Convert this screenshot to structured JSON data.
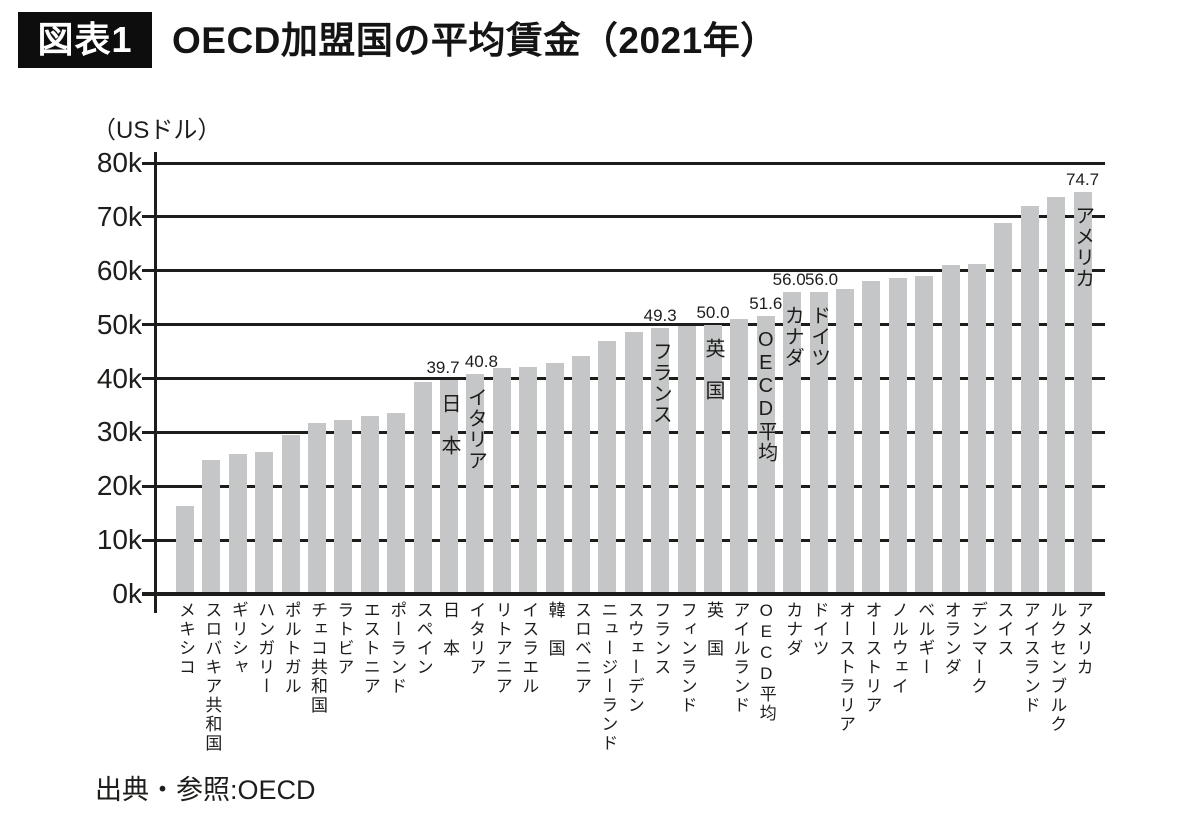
{
  "figure_label": "図表1",
  "title": "OECD加盟国の平均賃金（2021年）",
  "source": "出典・参照:OECD",
  "chart_data": {
    "type": "bar",
    "title": "OECD加盟国の平均賃金（2021年）",
    "unit_label": "（USドル）",
    "xlabel": "",
    "ylabel": "USドル",
    "ylim": [
      0,
      80
    ],
    "ytick_step": 10,
    "ytick_labels": [
      "0k",
      "10k",
      "20k",
      "30k",
      "40k",
      "50k",
      "60k",
      "70k",
      "80k"
    ],
    "grid": true,
    "bar_color": "#c5c6c7",
    "line_color": "#1d1d1b",
    "values_unit": "thousand USD",
    "categories": [
      {
        "label": "メキシコ",
        "value": 16.4
      },
      {
        "label": "スロバキア共和国",
        "value": 24.8
      },
      {
        "label": "ギリシャ",
        "value": 26.0
      },
      {
        "label": "ハンガリー",
        "value": 26.3
      },
      {
        "label": "ポルトガル",
        "value": 29.5
      },
      {
        "label": "チェコ共和国",
        "value": 31.7
      },
      {
        "label": "ラトビア",
        "value": 32.3
      },
      {
        "label": "エストニア",
        "value": 33.1
      },
      {
        "label": "ポーランド",
        "value": 33.6
      },
      {
        "label": "スペイン",
        "value": 39.3
      },
      {
        "label": "日　本",
        "value": 39.7,
        "value_label": "39.7",
        "annotation": "日　本",
        "dx": -6
      },
      {
        "label": "イタリア",
        "value": 40.8,
        "value_label": "40.8",
        "annotation": "イタリア",
        "dx": 6
      },
      {
        "label": "リトアニア",
        "value": 41.9
      },
      {
        "label": "イスラエル",
        "value": 42.1
      },
      {
        "label": "韓　国",
        "value": 42.9
      },
      {
        "label": "スロベニア",
        "value": 44.1
      },
      {
        "label": "ニュージーランド",
        "value": 46.9
      },
      {
        "label": "スウェーデン",
        "value": 48.7
      },
      {
        "label": "フランス",
        "value": 49.3,
        "value_label": "49.3",
        "annotation": "フランス",
        "dx": 0
      },
      {
        "label": "フィンランド",
        "value": 49.7
      },
      {
        "label": "英　国",
        "value": 50.0,
        "value_label": "50.0",
        "annotation": "英　国",
        "dx": 0
      },
      {
        "label": "アイルランド",
        "value": 51.0
      },
      {
        "label": "OECD平均",
        "value": 51.6,
        "value_label": "51.6",
        "annotation": "OECD平均",
        "dx": 0
      },
      {
        "label": "カナダ",
        "value": 56.0,
        "value_label": "56.0",
        "annotation": "カナダ",
        "dx": -3
      },
      {
        "label": "ドイツ",
        "value": 56.0,
        "value_label": "56.0",
        "annotation": "ドイツ",
        "dx": 3
      },
      {
        "label": "オーストラリア",
        "value": 56.6
      },
      {
        "label": "オーストリア",
        "value": 58.1
      },
      {
        "label": "ノルウェイ",
        "value": 58.6
      },
      {
        "label": "ベルギー",
        "value": 59.1
      },
      {
        "label": "オランダ",
        "value": 61.1
      },
      {
        "label": "デンマーク",
        "value": 61.3
      },
      {
        "label": "スイス",
        "value": 68.9
      },
      {
        "label": "アイスランド",
        "value": 72.0
      },
      {
        "label": "ルクセンブルク",
        "value": 73.7
      },
      {
        "label": "アメリカ",
        "value": 74.7,
        "value_label": "74.7",
        "annotation": "アメリカ",
        "dx": 0
      }
    ]
  }
}
